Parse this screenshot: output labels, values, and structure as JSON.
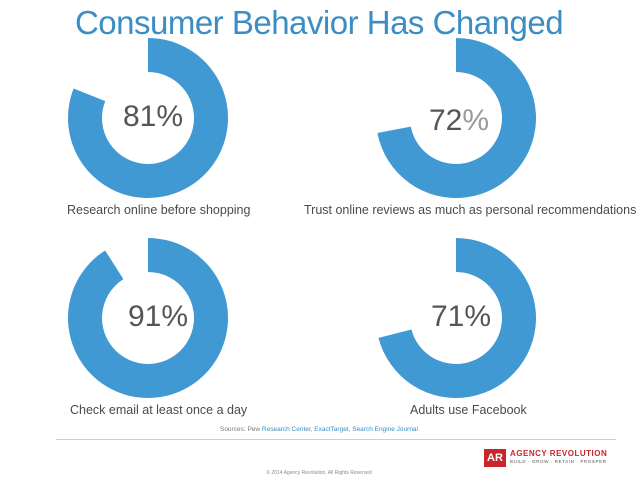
{
  "title": "Consumer Behavior Has Changed",
  "colors": {
    "accent": "#3a8ec4",
    "donut": "#4199d3",
    "logo": "#c8262c"
  },
  "chart_data": [
    {
      "type": "pie",
      "variant": "donut",
      "value": 81,
      "display": "81%",
      "label": "Research online before shopping"
    },
    {
      "type": "pie",
      "variant": "donut",
      "value": 72,
      "display_number": "72",
      "display_sign": "%",
      "label": "Trust online reviews as much as personal recommendations"
    },
    {
      "type": "pie",
      "variant": "donut",
      "value": 91,
      "display": "91%",
      "label": "Check email at least once a day"
    },
    {
      "type": "pie",
      "variant": "donut",
      "value": 71,
      "display": "71%",
      "label": "Adults use Facebook"
    }
  ],
  "sources": {
    "prefix": "Sources: Pew",
    "links": "Research Center, ExactTarget, Search Engine Journal"
  },
  "footer": "© 2014 Agency Revolution, All Rights Reserved",
  "logo": {
    "mark": "AR",
    "name": "AGENCY REVOLUTION",
    "tagline": "BUILD · GROW · RETAIN · PROSPER"
  }
}
